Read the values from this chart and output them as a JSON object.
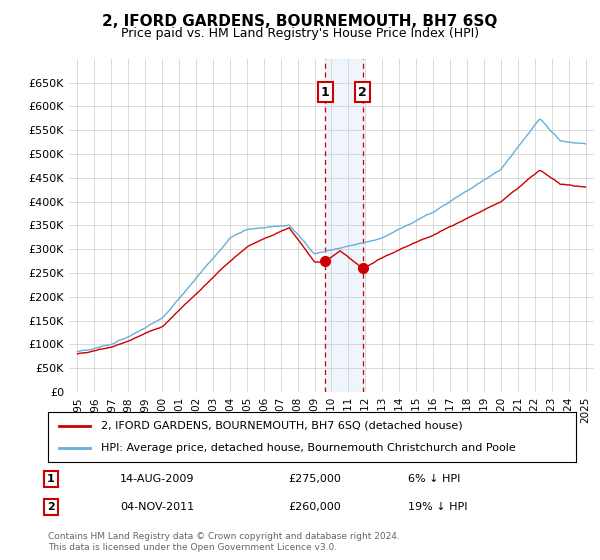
{
  "title": "2, IFORD GARDENS, BOURNEMOUTH, BH7 6SQ",
  "subtitle": "Price paid vs. HM Land Registry's House Price Index (HPI)",
  "legend_line1": "2, IFORD GARDENS, BOURNEMOUTH, BH7 6SQ (detached house)",
  "legend_line2": "HPI: Average price, detached house, Bournemouth Christchurch and Poole",
  "annotation1_label": "1",
  "annotation1_date": "14-AUG-2009",
  "annotation1_price": "£275,000",
  "annotation1_hpi": "6% ↓ HPI",
  "annotation2_label": "2",
  "annotation2_date": "04-NOV-2011",
  "annotation2_price": "£260,000",
  "annotation2_hpi": "19% ↓ HPI",
  "footnote1": "Contains HM Land Registry data © Crown copyright and database right 2024.",
  "footnote2": "This data is licensed under the Open Government Licence v3.0.",
  "hpi_color": "#6baed6",
  "price_color": "#cc0000",
  "annotation_box_color": "#cc0000",
  "annotation_fill_color": "#ddeeff",
  "grid_color": "#cccccc",
  "background_color": "#ffffff",
  "ylim": [
    0,
    700000
  ],
  "yticks": [
    0,
    50000,
    100000,
    150000,
    200000,
    250000,
    300000,
    350000,
    400000,
    450000,
    500000,
    550000,
    600000,
    650000
  ],
  "xlim_start": 1994.5,
  "xlim_end": 2025.5,
  "sale1_x": 2009.617,
  "sale2_x": 2011.836,
  "sale1_y": 275000,
  "sale2_y": 260000
}
